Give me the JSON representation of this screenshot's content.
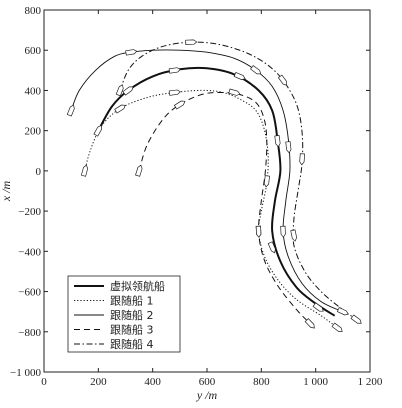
{
  "chart_data": {
    "type": "line",
    "title": "",
    "xlabel": "y /m",
    "ylabel": "x /m",
    "xlim": [
      0,
      1200
    ],
    "ylim": [
      -1000,
      800
    ],
    "xticks": [
      0,
      200,
      400,
      600,
      800,
      1000,
      1200
    ],
    "xtick_labels": [
      "0",
      "200",
      "400",
      "600",
      "800",
      "1 000",
      "1 200"
    ],
    "yticks": [
      -1000,
      -800,
      -600,
      -400,
      -200,
      0,
      200,
      400,
      600,
      800
    ],
    "ytick_labels": [
      "−1 000",
      "−800",
      "−600",
      "−400",
      "−200",
      "0",
      "200",
      "400",
      "600",
      "800"
    ],
    "grid": false,
    "legend_position": "bottom-left",
    "series": [
      {
        "name": "虚拟领航船",
        "style": "solid-thick",
        "points": [
          [
            200,
            200
          ],
          [
            250,
            320
          ],
          [
            310,
            400
          ],
          [
            400,
            470
          ],
          [
            500,
            505
          ],
          [
            600,
            510
          ],
          [
            700,
            480
          ],
          [
            790,
            400
          ],
          [
            840,
            300
          ],
          [
            860,
            150
          ],
          [
            870,
            0
          ],
          [
            850,
            -150
          ],
          [
            840,
            -300
          ],
          [
            870,
            -450
          ],
          [
            930,
            -580
          ],
          [
            1000,
            -660
          ],
          [
            1070,
            -720
          ]
        ],
        "ship_points": [
          [
            200,
            200
          ],
          [
            310,
            400
          ],
          [
            480,
            500
          ],
          [
            720,
            470
          ],
          [
            860,
            150
          ],
          [
            840,
            -380
          ],
          [
            1010,
            -680
          ]
        ]
      },
      {
        "name": "跟随船 1",
        "style": "dotted",
        "points": [
          [
            150,
            0
          ],
          [
            170,
            100
          ],
          [
            210,
            220
          ],
          [
            280,
            310
          ],
          [
            380,
            365
          ],
          [
            480,
            390
          ],
          [
            580,
            400
          ],
          [
            660,
            390
          ],
          [
            730,
            350
          ],
          [
            780,
            300
          ],
          [
            810,
            210
          ],
          [
            825,
            80
          ],
          [
            820,
            -60
          ],
          [
            800,
            -200
          ],
          [
            790,
            -300
          ],
          [
            810,
            -420
          ],
          [
            860,
            -540
          ],
          [
            930,
            -640
          ],
          [
            1020,
            -720
          ],
          [
            1080,
            -780
          ]
        ],
        "ship_points": [
          [
            150,
            0
          ],
          [
            280,
            310
          ],
          [
            480,
            390
          ],
          [
            820,
            -50
          ],
          [
            790,
            -300
          ],
          [
            1080,
            -780
          ]
        ]
      },
      {
        "name": "跟随船 2",
        "style": "solid-thin",
        "points": [
          [
            100,
            300
          ],
          [
            130,
            400
          ],
          [
            190,
            500
          ],
          [
            260,
            570
          ],
          [
            320,
            590
          ],
          [
            400,
            600
          ],
          [
            500,
            600
          ],
          [
            600,
            590
          ],
          [
            700,
            560
          ],
          [
            780,
            500
          ],
          [
            840,
            420
          ],
          [
            880,
            300
          ],
          [
            900,
            150
          ],
          [
            905,
            0
          ],
          [
            890,
            -150
          ],
          [
            880,
            -300
          ],
          [
            900,
            -430
          ],
          [
            950,
            -560
          ],
          [
            1020,
            -650
          ],
          [
            1100,
            -700
          ]
        ],
        "ship_points": [
          [
            100,
            300
          ],
          [
            320,
            590
          ],
          [
            780,
            500
          ],
          [
            900,
            120
          ],
          [
            880,
            -300
          ],
          [
            1100,
            -700
          ]
        ]
      },
      {
        "name": "跟随船 3",
        "style": "dashed",
        "points": [
          [
            350,
            0
          ],
          [
            380,
            130
          ],
          [
            440,
            260
          ],
          [
            500,
            330
          ],
          [
            580,
            380
          ],
          [
            650,
            390
          ],
          [
            720,
            380
          ],
          [
            780,
            340
          ],
          [
            810,
            260
          ],
          [
            820,
            150
          ],
          [
            815,
            0
          ],
          [
            800,
            -150
          ],
          [
            790,
            -300
          ],
          [
            810,
            -440
          ],
          [
            860,
            -570
          ],
          [
            930,
            -690
          ],
          [
            980,
            -760
          ]
        ],
        "ship_points": [
          [
            350,
            0
          ],
          [
            500,
            330
          ],
          [
            700,
            390
          ],
          [
            790,
            -300
          ],
          [
            980,
            -760
          ]
        ]
      },
      {
        "name": "跟随船 4",
        "style": "dashdot",
        "points": [
          [
            280,
            400
          ],
          [
            310,
            500
          ],
          [
            360,
            570
          ],
          [
            440,
            620
          ],
          [
            540,
            640
          ],
          [
            640,
            630
          ],
          [
            740,
            590
          ],
          [
            820,
            530
          ],
          [
            880,
            450
          ],
          [
            930,
            330
          ],
          [
            950,
            190
          ],
          [
            950,
            40
          ],
          [
            935,
            -100
          ],
          [
            920,
            -240
          ],
          [
            920,
            -370
          ],
          [
            960,
            -500
          ],
          [
            1020,
            -600
          ],
          [
            1090,
            -680
          ],
          [
            1150,
            -740
          ]
        ],
        "ship_points": [
          [
            280,
            400
          ],
          [
            540,
            640
          ],
          [
            880,
            450
          ],
          [
            950,
            60
          ],
          [
            920,
            -320
          ],
          [
            1150,
            -740
          ]
        ]
      }
    ]
  },
  "legend": {
    "items": [
      "虚拟领航船",
      "跟随船 1",
      "跟随船 2",
      "跟随船 3",
      "跟随船 4"
    ]
  }
}
